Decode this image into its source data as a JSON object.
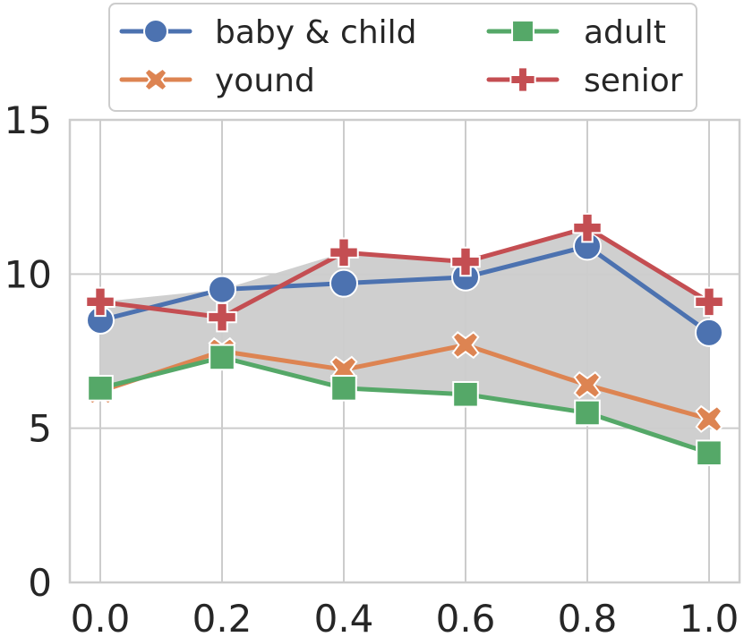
{
  "chart_data": {
    "type": "line",
    "title": "",
    "xlabel": "",
    "ylabel": "",
    "x": [
      0.0,
      0.2,
      0.4,
      0.6,
      0.8,
      1.0
    ],
    "x_tick_labels": [
      "0.0",
      "0.2",
      "0.4",
      "0.6",
      "0.8",
      "1.0"
    ],
    "xlim": [
      -0.05,
      1.05
    ],
    "ylim": [
      0,
      15
    ],
    "y_ticks": [
      0,
      5,
      10,
      15
    ],
    "y_tick_labels": [
      "0",
      "5",
      "10",
      "15"
    ],
    "grid": true,
    "legend_position": "top-center",
    "fill_between": {
      "color": "#cccccc",
      "description": "shaded range between min and max of all series"
    },
    "series": [
      {
        "name": "baby & child",
        "color": "#4c72b0",
        "marker": "circle",
        "values": [
          8.5,
          9.5,
          9.7,
          9.9,
          10.9,
          8.1
        ]
      },
      {
        "name": "yound",
        "color": "#dd8452",
        "marker": "x",
        "values": [
          6.2,
          7.5,
          6.9,
          7.7,
          6.4,
          5.3
        ]
      },
      {
        "name": "adult",
        "color": "#55a868",
        "marker": "square",
        "values": [
          6.3,
          7.3,
          6.3,
          6.1,
          5.5,
          4.2
        ]
      },
      {
        "name": "senior",
        "color": "#c44e52",
        "marker": "plus",
        "values": [
          9.1,
          8.6,
          10.7,
          10.4,
          11.5,
          9.1
        ]
      }
    ]
  }
}
